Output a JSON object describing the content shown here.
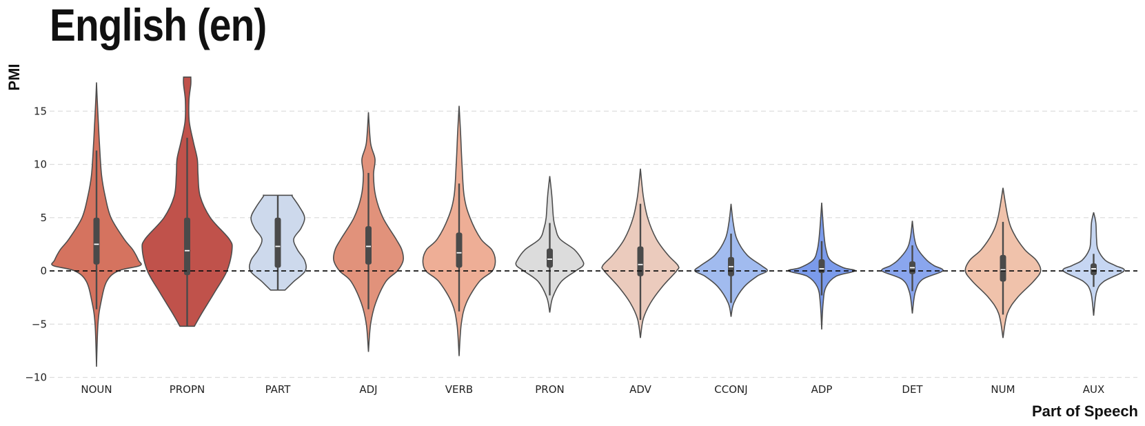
{
  "chart_data": {
    "type": "violin",
    "title": "English (en)",
    "xlabel": "Part of Speech",
    "ylabel": "PMI",
    "ylim": [
      -10.5,
      18.5
    ],
    "yticks": [
      -10,
      -5,
      0,
      5,
      10,
      15
    ],
    "ytick_labels": [
      "−10",
      "−5",
      "0",
      "5",
      "10",
      "15"
    ],
    "grid": "horizontal dashed",
    "reference_line": 0,
    "categories": [
      "NOUN",
      "PROPN",
      "PART",
      "ADJ",
      "VERB",
      "PRON",
      "ADV",
      "CCONJ",
      "ADP",
      "DET",
      "NUM",
      "AUX"
    ],
    "series": [
      {
        "name": "NOUN",
        "color": "#d5735f",
        "min": -9.0,
        "max": 17.7,
        "q1": 0.6,
        "median": 2.5,
        "q3": 5.0,
        "whisker_low": -3.6,
        "whisker_high": 11.3,
        "profile": [
          [
            -9.0,
            0.0
          ],
          [
            -5.0,
            0.02
          ],
          [
            -3.0,
            0.06
          ],
          [
            -1.0,
            0.14
          ],
          [
            0.0,
            0.3
          ],
          [
            0.5,
            0.6
          ],
          [
            1.0,
            0.58
          ],
          [
            2.0,
            0.5
          ],
          [
            3.0,
            0.38
          ],
          [
            5.0,
            0.2
          ],
          [
            7.0,
            0.12
          ],
          [
            9.0,
            0.07
          ],
          [
            12.0,
            0.04
          ],
          [
            14.0,
            0.025
          ],
          [
            16.0,
            0.01
          ],
          [
            17.7,
            0.0
          ]
        ]
      },
      {
        "name": "PROPN",
        "color": "#c0524b",
        "min": -5.2,
        "max": 18.2,
        "q1": -0.4,
        "median": 1.9,
        "q3": 5.0,
        "whisker_low": -5.2,
        "whisker_high": 12.5,
        "profile": [
          [
            -5.2,
            0.1
          ],
          [
            -4.0,
            0.2
          ],
          [
            -2.0,
            0.38
          ],
          [
            0.0,
            0.55
          ],
          [
            2.0,
            0.62
          ],
          [
            3.0,
            0.58
          ],
          [
            5.0,
            0.32
          ],
          [
            7.0,
            0.18
          ],
          [
            9.0,
            0.15
          ],
          [
            10.5,
            0.14
          ],
          [
            12.0,
            0.09
          ],
          [
            14.0,
            0.03
          ],
          [
            16.0,
            0.025
          ],
          [
            17.5,
            0.05
          ],
          [
            18.2,
            0.05
          ]
        ]
      },
      {
        "name": "PART",
        "color": "#cdd9ec",
        "min": -1.8,
        "max": 7.1,
        "q1": 0.3,
        "median": 2.3,
        "q3": 5.0,
        "whisker_low": -1.8,
        "whisker_high": 7.1,
        "profile": [
          [
            -1.8,
            0.1
          ],
          [
            -1.0,
            0.22
          ],
          [
            0.0,
            0.38
          ],
          [
            1.0,
            0.37
          ],
          [
            2.0,
            0.27
          ],
          [
            3.0,
            0.22
          ],
          [
            4.0,
            0.32
          ],
          [
            5.0,
            0.37
          ],
          [
            6.0,
            0.3
          ],
          [
            7.0,
            0.2
          ],
          [
            7.1,
            0.2
          ]
        ]
      },
      {
        "name": "ADJ",
        "color": "#e1927b",
        "min": -7.6,
        "max": 14.9,
        "q1": 0.6,
        "median": 2.3,
        "q3": 4.2,
        "whisker_low": -3.6,
        "whisker_high": 9.2,
        "profile": [
          [
            -7.6,
            0.0
          ],
          [
            -5.0,
            0.03
          ],
          [
            -3.0,
            0.1
          ],
          [
            -1.0,
            0.24
          ],
          [
            0.0,
            0.4
          ],
          [
            1.0,
            0.48
          ],
          [
            2.0,
            0.46
          ],
          [
            3.0,
            0.38
          ],
          [
            5.0,
            0.2
          ],
          [
            7.0,
            0.1
          ],
          [
            9.0,
            0.07
          ],
          [
            10.5,
            0.09
          ],
          [
            12.0,
            0.03
          ],
          [
            14.9,
            0.0
          ]
        ]
      },
      {
        "name": "VERB",
        "color": "#eeae96",
        "min": -8.0,
        "max": 15.5,
        "q1": 0.3,
        "median": 1.7,
        "q3": 3.6,
        "whisker_low": -3.8,
        "whisker_high": 8.2,
        "profile": [
          [
            -8.0,
            0.0
          ],
          [
            -5.0,
            0.03
          ],
          [
            -3.0,
            0.1
          ],
          [
            -1.0,
            0.28
          ],
          [
            0.0,
            0.46
          ],
          [
            1.0,
            0.5
          ],
          [
            2.0,
            0.45
          ],
          [
            3.0,
            0.3
          ],
          [
            5.0,
            0.15
          ],
          [
            7.0,
            0.07
          ],
          [
            10.0,
            0.04
          ],
          [
            13.0,
            0.02
          ],
          [
            15.5,
            0.0
          ]
        ]
      },
      {
        "name": "PRON",
        "color": "#dcdcdc",
        "min": -3.9,
        "max": 8.9,
        "q1": 0.3,
        "median": 1.1,
        "q3": 2.1,
        "whisker_low": -2.3,
        "whisker_high": 4.5,
        "profile": [
          [
            -3.9,
            0.0
          ],
          [
            -2.5,
            0.04
          ],
          [
            -1.0,
            0.16
          ],
          [
            0.0,
            0.36
          ],
          [
            0.5,
            0.46
          ],
          [
            1.0,
            0.45
          ],
          [
            2.0,
            0.34
          ],
          [
            3.0,
            0.14
          ],
          [
            4.0,
            0.08
          ],
          [
            5.0,
            0.05
          ],
          [
            7.0,
            0.03
          ],
          [
            8.9,
            0.0
          ]
        ]
      },
      {
        "name": "ADV",
        "color": "#ebcbbd",
        "min": -6.3,
        "max": 9.6,
        "q1": -0.5,
        "median": 0.6,
        "q3": 2.3,
        "whisker_low": -4.6,
        "whisker_high": 6.3,
        "profile": [
          [
            -6.3,
            0.0
          ],
          [
            -4.5,
            0.04
          ],
          [
            -3.0,
            0.14
          ],
          [
            -1.5,
            0.3
          ],
          [
            0.0,
            0.5
          ],
          [
            0.5,
            0.52
          ],
          [
            1.5,
            0.38
          ],
          [
            3.0,
            0.22
          ],
          [
            5.0,
            0.1
          ],
          [
            7.0,
            0.04
          ],
          [
            9.6,
            0.0
          ]
        ]
      },
      {
        "name": "CCONJ",
        "color": "#a1bbef",
        "min": -4.3,
        "max": 6.3,
        "q1": -0.5,
        "median": 0.4,
        "q3": 1.3,
        "whisker_low": -3.0,
        "whisker_high": 3.5,
        "profile": [
          [
            -4.3,
            0.0
          ],
          [
            -3.0,
            0.04
          ],
          [
            -1.5,
            0.18
          ],
          [
            -0.5,
            0.36
          ],
          [
            0.0,
            0.5
          ],
          [
            0.5,
            0.42
          ],
          [
            1.5,
            0.22
          ],
          [
            3.0,
            0.08
          ],
          [
            4.5,
            0.03
          ],
          [
            6.3,
            0.0
          ]
        ]
      },
      {
        "name": "ADP",
        "color": "#7b9beb",
        "min": -5.5,
        "max": 6.4,
        "q1": -0.2,
        "median": 0.2,
        "q3": 1.1,
        "whisker_low": -2.3,
        "whisker_high": 2.8,
        "profile": [
          [
            -5.5,
            0.0
          ],
          [
            -3.0,
            0.02
          ],
          [
            -1.5,
            0.06
          ],
          [
            -0.5,
            0.2
          ],
          [
            0.0,
            0.46
          ],
          [
            0.3,
            0.3
          ],
          [
            1.0,
            0.12
          ],
          [
            2.0,
            0.06
          ],
          [
            3.5,
            0.03
          ],
          [
            6.4,
            0.0
          ]
        ]
      },
      {
        "name": "DET",
        "color": "#8aa6ee",
        "min": -4.0,
        "max": 4.7,
        "q1": -0.3,
        "median": 0.3,
        "q3": 0.9,
        "whisker_low": -1.9,
        "whisker_high": 2.4,
        "profile": [
          [
            -4.0,
            0.0
          ],
          [
            -2.0,
            0.04
          ],
          [
            -0.8,
            0.14
          ],
          [
            0.0,
            0.42
          ],
          [
            0.5,
            0.3
          ],
          [
            1.0,
            0.2
          ],
          [
            2.0,
            0.08
          ],
          [
            3.0,
            0.03
          ],
          [
            4.7,
            0.0
          ]
        ]
      },
      {
        "name": "NUM",
        "color": "#f0c2ab",
        "min": -6.3,
        "max": 7.8,
        "q1": -1.0,
        "median": 0.1,
        "q3": 1.5,
        "whisker_low": -4.1,
        "whisker_high": 4.6,
        "profile": [
          [
            -6.3,
            0.0
          ],
          [
            -4.0,
            0.06
          ],
          [
            -2.5,
            0.2
          ],
          [
            -1.0,
            0.42
          ],
          [
            0.0,
            0.52
          ],
          [
            1.0,
            0.46
          ],
          [
            2.0,
            0.3
          ],
          [
            3.5,
            0.15
          ],
          [
            5.0,
            0.07
          ],
          [
            7.8,
            0.0
          ]
        ]
      },
      {
        "name": "AUX",
        "color": "#c6d6f2",
        "min": -4.2,
        "max": 5.5,
        "q1": -0.4,
        "median": 0.2,
        "q3": 0.7,
        "whisker_low": -1.5,
        "whisker_high": 1.6,
        "profile": [
          [
            -4.2,
            0.0
          ],
          [
            -2.0,
            0.04
          ],
          [
            -1.0,
            0.14
          ],
          [
            0.0,
            0.42
          ],
          [
            0.5,
            0.3
          ],
          [
            1.0,
            0.16
          ],
          [
            2.0,
            0.06
          ],
          [
            3.0,
            0.04
          ],
          [
            4.5,
            0.03
          ],
          [
            5.5,
            0.0
          ]
        ]
      }
    ]
  }
}
